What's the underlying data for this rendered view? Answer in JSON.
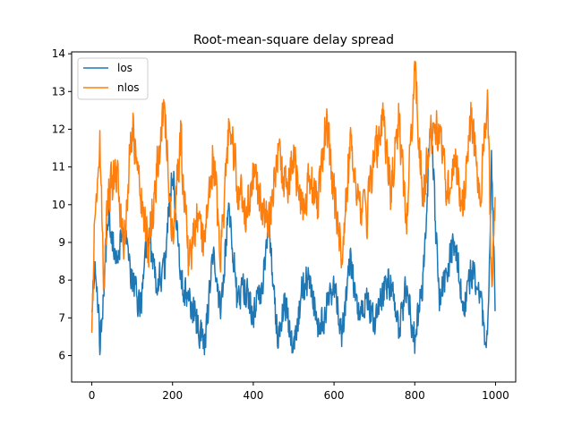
{
  "chart_data": {
    "type": "line",
    "title": "Root-mean-square delay spread",
    "xlabel": "",
    "ylabel": "",
    "xlim": [
      -50,
      1050
    ],
    "ylim": [
      5.3,
      14.05
    ],
    "x_ticks": [
      0,
      200,
      400,
      600,
      800,
      1000
    ],
    "y_ticks": [
      6,
      7,
      8,
      9,
      10,
      11,
      12,
      13,
      14
    ],
    "grid": false,
    "legend_position": "upper-left",
    "n_points": 1000,
    "series": [
      {
        "name": "los",
        "color": "#1f77b4",
        "x": [
          0,
          10,
          20,
          30,
          40,
          60,
          80,
          100,
          120,
          140,
          160,
          180,
          200,
          220,
          240,
          260,
          280,
          300,
          320,
          340,
          360,
          380,
          400,
          420,
          440,
          460,
          480,
          500,
          520,
          540,
          560,
          580,
          600,
          620,
          640,
          660,
          680,
          700,
          720,
          740,
          760,
          780,
          800,
          820,
          840,
          860,
          880,
          900,
          920,
          940,
          960,
          980,
          990,
          999
        ],
        "y": [
          7.5,
          8.3,
          6.4,
          7.6,
          9.9,
          8.5,
          9.3,
          8.1,
          7.3,
          9.2,
          7.9,
          8.3,
          11.1,
          8.0,
          7.5,
          6.9,
          6.3,
          8.6,
          7.2,
          10.1,
          7.4,
          7.8,
          7.1,
          7.7,
          9.3,
          6.5,
          7.4,
          6.0,
          7.8,
          8.1,
          6.6,
          7.2,
          7.9,
          6.6,
          8.6,
          7.0,
          7.5,
          6.8,
          7.7,
          8.0,
          6.7,
          7.8,
          6.4,
          7.9,
          12.4,
          7.4,
          8.3,
          9.1,
          7.2,
          8.2,
          7.6,
          6.2,
          11.1,
          7.5
        ]
      },
      {
        "name": "nlos",
        "color": "#ff7f0e",
        "x": [
          0,
          10,
          20,
          30,
          40,
          60,
          80,
          100,
          120,
          140,
          160,
          180,
          200,
          220,
          240,
          260,
          280,
          300,
          320,
          340,
          360,
          380,
          400,
          420,
          440,
          460,
          480,
          500,
          520,
          540,
          560,
          580,
          600,
          620,
          640,
          660,
          680,
          700,
          720,
          740,
          760,
          780,
          800,
          820,
          840,
          860,
          880,
          900,
          920,
          940,
          960,
          980,
          990,
          999
        ],
        "y": [
          7.0,
          10.4,
          11.6,
          8.0,
          10.2,
          11.0,
          9.0,
          12.2,
          10.5,
          8.8,
          10.8,
          12.6,
          9.2,
          11.8,
          8.4,
          9.6,
          9.0,
          11.3,
          8.6,
          12.3,
          10.6,
          9.8,
          10.8,
          10.0,
          9.5,
          11.5,
          10.4,
          11.2,
          9.8,
          10.6,
          10.0,
          12.3,
          10.3,
          8.6,
          11.6,
          10.0,
          9.6,
          11.2,
          12.4,
          10.4,
          12.2,
          9.8,
          13.6,
          10.2,
          11.8,
          12.1,
          10.3,
          11.4,
          9.8,
          12.4,
          10.0,
          12.9,
          8.0,
          9.8
        ]
      }
    ]
  }
}
